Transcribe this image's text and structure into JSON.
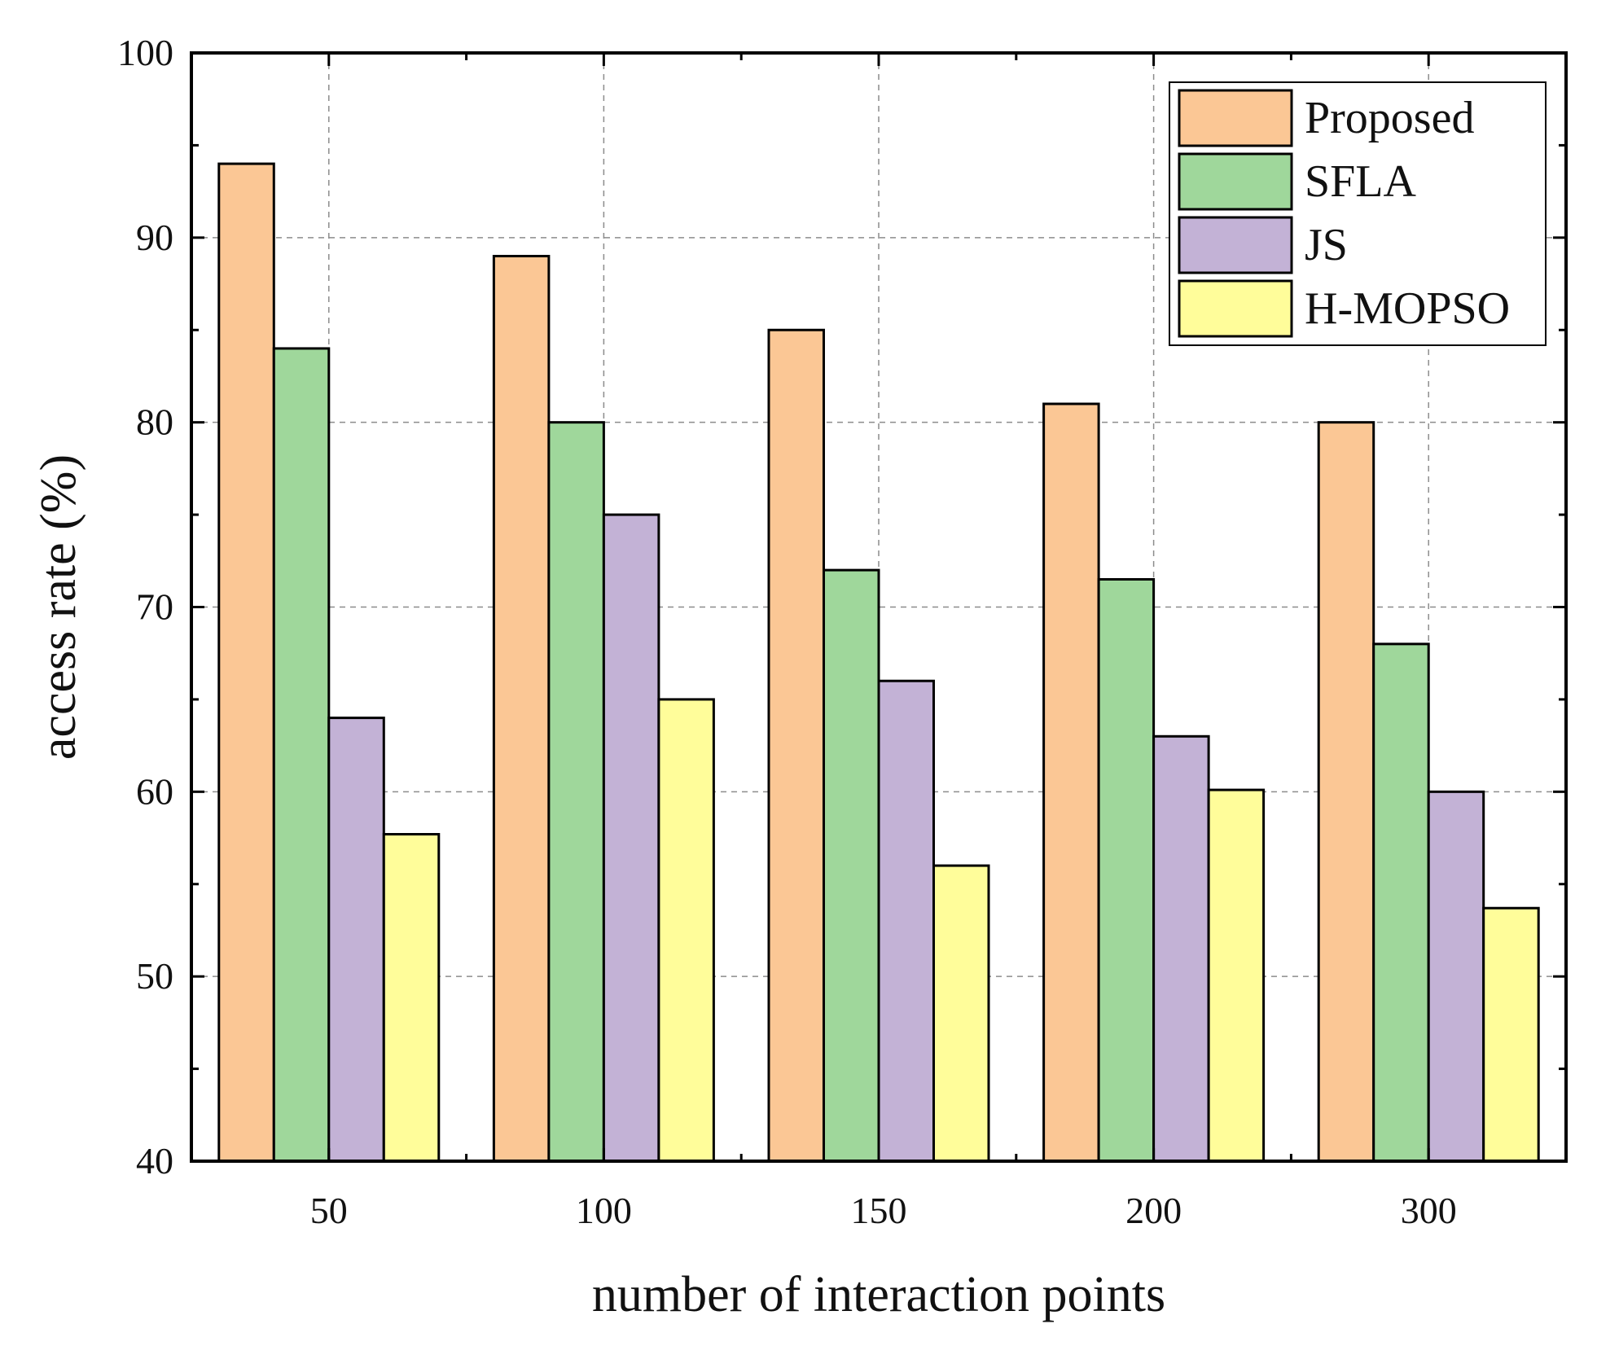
{
  "chart_data": {
    "type": "bar",
    "title": "",
    "xlabel": "number of interaction points",
    "ylabel": "access rate (%)",
    "categories": [
      "50",
      "100",
      "150",
      "200",
      "300"
    ],
    "ylim": [
      40,
      100
    ],
    "yticks": [
      40,
      50,
      60,
      70,
      80,
      90,
      100
    ],
    "grid": true,
    "legend_position": "top-right",
    "series": [
      {
        "name": "Proposed",
        "color": "#FBC795",
        "values": [
          94,
          89,
          85,
          81,
          80
        ]
      },
      {
        "name": "SFLA",
        "color": "#9FD79B",
        "values": [
          84,
          80,
          72,
          71.5,
          68
        ]
      },
      {
        "name": "JS",
        "color": "#C3B2D6",
        "values": [
          64,
          75,
          66,
          63,
          60
        ]
      },
      {
        "name": "H-MOPSO",
        "color": "#FFFD9A",
        "values": [
          57.7,
          65,
          56,
          60.1,
          53.7
        ]
      }
    ]
  }
}
